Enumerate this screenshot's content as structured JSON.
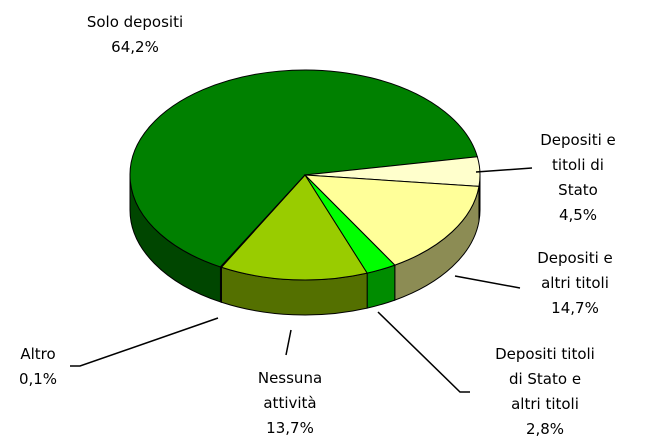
{
  "chart_data": {
    "type": "pie",
    "categories": [
      "Solo depositi",
      "Depositi e\ntitoli di Stato",
      "Depositi e\naltri titoli",
      "Depositi titoli\ndi Stato e\naltri titoli",
      "Nessuna\nattività",
      "Altro"
    ],
    "values": [
      64.2,
      4.5,
      14.7,
      2.8,
      13.7,
      0.1
    ],
    "value_labels": [
      "64,2%",
      "4,5%",
      "14,7%",
      "2,8%",
      "13,7%",
      "0,1%"
    ],
    "colors": [
      "#008000",
      "#ffffcc",
      "#ffff99",
      "#00ff00",
      "#99cc00",
      "#333333"
    ]
  }
}
